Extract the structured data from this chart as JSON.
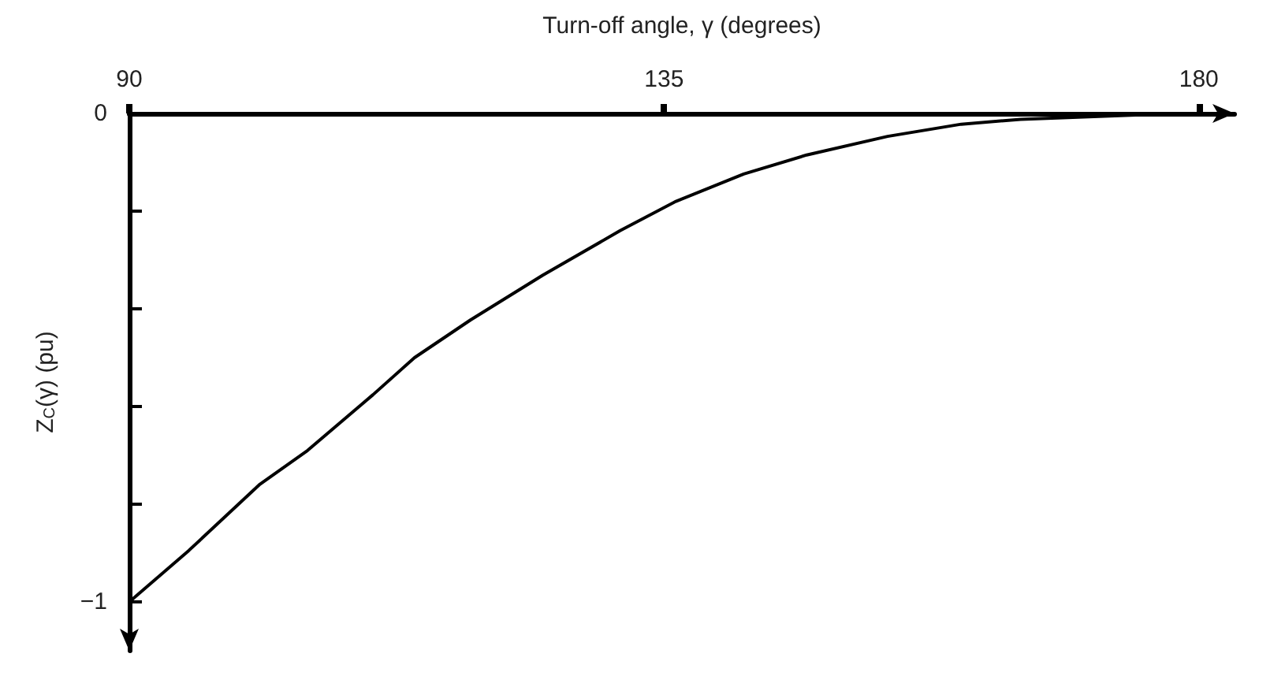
{
  "chart_data": {
    "type": "line",
    "xlabel": "Turn-off angle, γ (degrees)",
    "ylabel": "Z$_{C}$(γ) (pu)",
    "x": [
      90,
      95,
      101,
      105,
      110.5,
      114,
      118.7,
      124.8,
      131.3,
      136,
      141.7,
      147,
      153.8,
      160,
      165,
      171.6,
      176,
      180
    ],
    "series": [
      {
        "color": "#000000",
        "values": [
          -1,
          -0.895,
          -0.759,
          -0.69,
          -0.576,
          -0.5,
          -0.423,
          -0.331,
          -0.24,
          -0.18,
          -0.124,
          -0.085,
          -0.047,
          -0.022,
          -0.012,
          -0.006,
          -0.002,
          0
        ]
      }
    ],
    "xlim": [
      90,
      183
    ],
    "ylim": [
      -1.1,
      0
    ],
    "xticks": [
      90,
      135,
      180
    ],
    "yticks": [
      {
        "value": 0,
        "label": "0"
      },
      {
        "value": -0.2,
        "label": null
      },
      {
        "value": -0.4,
        "label": null
      },
      {
        "value": -0.6,
        "label": null
      },
      {
        "value": -0.8,
        "label": null
      },
      {
        "value": -1,
        "label": "−1"
      }
    ],
    "grid": false,
    "marker": "none",
    "line_style": "solid"
  }
}
